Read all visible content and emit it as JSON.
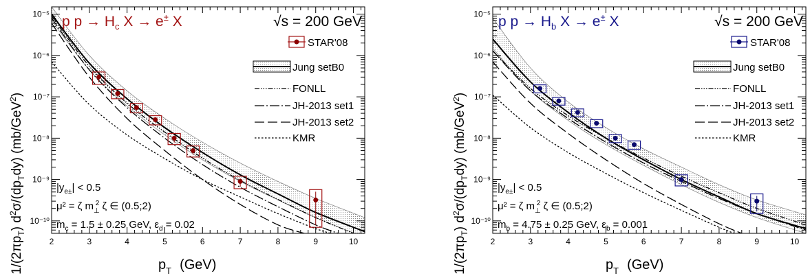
{
  "chart_data": [
    {
      "type": "line",
      "title": "p p → H_c X → e^± X",
      "title_parts": {
        "main": "p p → H",
        "sub": "c",
        "rest": " X → e",
        "sup": "±",
        "end": " X"
      },
      "energy_label": "√s = 200 GeV",
      "xlabel": "p_T (GeV)",
      "ylabel": "1/(2πp_T) d²σ/(dp_T dy)  (mb/GeV²)",
      "xlim": [
        2,
        10.3
      ],
      "ylim": [
        5e-11,
        1.5e-05
      ],
      "yscale": "log",
      "x_ticks": [
        "2",
        "3",
        "4",
        "5",
        "6",
        "7",
        "8",
        "9",
        "10"
      ],
      "y_ticks": [
        "10⁻¹⁰",
        "10⁻⁹",
        "10⁻⁸",
        "10⁻⁷",
        "10⁻⁶",
        "10⁻⁵"
      ],
      "color": "#a31515",
      "legend": {
        "data": "STAR'08",
        "band": "Jung setB0",
        "fonll": "FONLL",
        "set1": "JH-2013 set1",
        "set2": "JH-2013 set2",
        "kmr": "KMR"
      },
      "annotations": [
        "|y_{e±}| < 0.5",
        "μ² = ζ m²_⊥   ζ ∈ (0.5;2)",
        "m_c = 1.5 ± 0.25 GeV,    ε_d = 0.02"
      ],
      "annotation_texts": {
        "rap": "|y",
        "rap_sub": "e±",
        "rap_rest": "| < 0.5",
        "scale": "μ² = ζ m",
        "scale_sub": "⊥",
        "scale_sup": "2",
        "scale_rest": "   ζ ∈ (0.5;2)",
        "mass": "m",
        "mass_sub": "c",
        "mass_rest": " = 1.5 ± 0.25 GeV,    ε",
        "eps_sub": "d",
        "eps_rest": " = 0.02"
      },
      "points": [
        {
          "x": 3.25,
          "y": 3e-07,
          "dy": 1e-07
        },
        {
          "x": 3.75,
          "y": 1.2e-07,
          "dy": 3e-08
        },
        {
          "x": 4.25,
          "y": 5.5e-08,
          "dy": 1.4e-08
        },
        {
          "x": 4.75,
          "y": 2.8e-08,
          "dy": 7e-09
        },
        {
          "x": 5.25,
          "y": 1e-08,
          "dy": 3e-09
        },
        {
          "x": 5.75,
          "y": 5e-09,
          "dy": 1.5e-09
        },
        {
          "x": 7.0,
          "y": 9e-10,
          "dy": 3e-10
        },
        {
          "x": 9.0,
          "y": 3.2e-10,
          "dy": 2.5e-10
        }
      ],
      "series": [
        {
          "key": "band_upper",
          "x": [
            2,
            3,
            4,
            5,
            6,
            7,
            8,
            9,
            10.3
          ],
          "y": [
            1.5e-05,
            1e-06,
            1.4e-07,
            3e-08,
            8e-09,
            2.5e-09,
            9e-10,
            3.5e-10,
            1.2e-10
          ]
        },
        {
          "key": "band_lower",
          "x": [
            2,
            3,
            4,
            5,
            6,
            7,
            8,
            9,
            10.3
          ],
          "y": [
            7e-06,
            4.5e-07,
            6e-08,
            1.2e-08,
            3e-09,
            9e-10,
            3.2e-10,
            1.2e-10,
            4e-11
          ]
        },
        {
          "key": "jung",
          "x": [
            2,
            3,
            4,
            5,
            6,
            7,
            8,
            9,
            10.3
          ],
          "y": [
            1e-05,
            6.5e-07,
            9e-08,
            1.8e-08,
            4.5e-09,
            1.3e-09,
            4.5e-10,
            1.6e-10,
            5.5e-11
          ]
        },
        {
          "key": "fonll",
          "x": [
            2,
            3,
            4,
            5,
            6,
            7,
            8,
            9,
            10
          ],
          "y": [
            9e-06,
            5.5e-07,
            7e-08,
            1.4e-08,
            3.3e-09,
            9.5e-10,
            3.3e-10,
            1.2e-10,
            5e-11
          ]
        },
        {
          "key": "set1",
          "x": [
            2,
            3,
            4,
            5,
            6,
            7,
            8,
            9,
            9.6
          ],
          "y": [
            8e-06,
            4.5e-07,
            5.5e-08,
            1e-08,
            2.3e-09,
            6.5e-10,
            2.2e-10,
            8e-11,
            5e-11
          ]
        },
        {
          "key": "set2",
          "x": [
            2,
            3,
            4,
            5,
            6,
            7,
            8,
            8.7
          ],
          "y": [
            6e-06,
            3e-07,
            3e-08,
            5e-09,
            1e-09,
            2.5e-10,
            8e-11,
            5e-11
          ]
        },
        {
          "key": "kmr",
          "x": [
            2,
            3,
            4,
            5,
            6,
            7,
            8,
            9,
            9.4
          ],
          "y": [
            7e-07,
            6.5e-08,
            1.2e-08,
            3.2e-09,
            1e-09,
            3.8e-10,
            1.5e-10,
            6.5e-11,
            5e-11
          ]
        }
      ]
    },
    {
      "type": "line",
      "title": "p p → H_b X → e^± X",
      "title_parts": {
        "main": "p p → H",
        "sub": "b",
        "rest": " X → e",
        "sup": "±",
        "end": " X"
      },
      "energy_label": "√s = 200 GeV",
      "xlabel": "p_T (GeV)",
      "ylabel": "1/(2πp_T) d²σ/(dp_T dy)  (mb/GeV²)",
      "xlim": [
        2,
        10.3
      ],
      "ylim": [
        5e-11,
        1.5e-05
      ],
      "yscale": "log",
      "x_ticks": [
        "2",
        "3",
        "4",
        "5",
        "6",
        "7",
        "8",
        "9",
        "10"
      ],
      "y_ticks": [
        "10⁻¹⁰",
        "10⁻⁹",
        "10⁻⁸",
        "10⁻⁷",
        "10⁻⁶",
        "10⁻⁵"
      ],
      "color": "#1a1a8c",
      "legend": {
        "data": "STAR'08",
        "band": "Jung setB0",
        "fonll": "FONLL",
        "set1": "JH-2013 set1",
        "set2": "JH-2013 set2",
        "kmr": "KMR"
      },
      "annotations": [
        "|y_{e±}| < 0.5",
        "μ² = ζ m²_⊥   ζ ∈ (0.5;2)",
        "m_b = 4.75 ± 0.25 GeV,    ε_b = 0.001"
      ],
      "annotation_texts": {
        "rap": "|y",
        "rap_sub": "e±",
        "rap_rest": "| < 0.5",
        "scale": "μ² = ζ m",
        "scale_sub": "⊥",
        "scale_sup": "2",
        "scale_rest": "   ζ ∈ (0.5;2)",
        "mass": "m",
        "mass_sub": "b",
        "mass_rest": " = 4.75 ± 0.25 GeV,    ε",
        "eps_sub": "b",
        "eps_rest": " = 0.001"
      },
      "points": [
        {
          "x": 3.25,
          "y": 1.6e-07,
          "dy": 3.5e-08
        },
        {
          "x": 3.75,
          "y": 8e-08,
          "dy": 1.7e-08
        },
        {
          "x": 4.25,
          "y": 4.2e-08,
          "dy": 9e-09
        },
        {
          "x": 4.75,
          "y": 2.3e-08,
          "dy": 5e-09
        },
        {
          "x": 5.25,
          "y": 1e-08,
          "dy": 2.2e-09
        },
        {
          "x": 5.75,
          "y": 7e-09,
          "dy": 1.6e-09
        },
        {
          "x": 7.0,
          "y": 1e-09,
          "dy": 3e-10
        },
        {
          "x": 9.0,
          "y": 3e-10,
          "dy": 1.5e-10
        }
      ],
      "series": [
        {
          "key": "band_upper",
          "x": [
            2,
            3,
            4,
            5,
            6,
            7,
            8,
            9,
            10.3
          ],
          "y": [
            8e-06,
            5e-07,
            7.5e-08,
            1.8e-08,
            5.5e-09,
            2e-09,
            7.5e-10,
            3.2e-10,
            1.4e-10
          ]
        },
        {
          "key": "band_lower",
          "x": [
            2,
            3,
            4,
            5,
            6,
            7,
            8,
            9,
            10.3
          ],
          "y": [
            1.5e-06,
            1.4e-07,
            2.7e-08,
            7e-09,
            2.2e-09,
            7.5e-10,
            2.8e-10,
            1.2e-10,
            5e-11
          ]
        },
        {
          "key": "jung",
          "x": [
            2,
            3,
            4,
            5,
            6,
            7,
            8,
            9,
            10.3
          ],
          "y": [
            2.5e-06,
            2.3e-07,
            4.2e-08,
            1e-08,
            3e-09,
            1e-09,
            3.8e-10,
            1.5e-10,
            6.5e-11
          ]
        },
        {
          "key": "fonll",
          "x": [
            2,
            3,
            4,
            5,
            6,
            7,
            8,
            9,
            10.3
          ],
          "y": [
            1.3e-06,
            1.6e-07,
            3.5e-08,
            1e-08,
            3.3e-09,
            1.2e-09,
            4.8e-10,
            2e-10,
            8e-11
          ]
        },
        {
          "key": "set1",
          "x": [
            2,
            3,
            4,
            5,
            6,
            7,
            8,
            9,
            10.3
          ],
          "y": [
            1.3e-06,
            1.4e-07,
            3e-08,
            8e-09,
            2.5e-09,
            9e-10,
            3.5e-10,
            1.5e-10,
            6e-11
          ]
        },
        {
          "key": "set2",
          "x": [
            2,
            3,
            4,
            5,
            6,
            7,
            8,
            8.6
          ],
          "y": [
            7e-07,
            7e-08,
            1.3e-08,
            3e-09,
            8e-10,
            2.5e-10,
            8.5e-11,
            5e-11
          ]
        },
        {
          "key": "kmr",
          "x": [
            2,
            3,
            4,
            5,
            6,
            7,
            8,
            8.4
          ],
          "y": [
            1.1e-07,
            1.8e-08,
            4.5e-09,
            1.4e-09,
            4.8e-10,
            1.8e-10,
            7e-11,
            5e-11
          ]
        }
      ]
    }
  ]
}
